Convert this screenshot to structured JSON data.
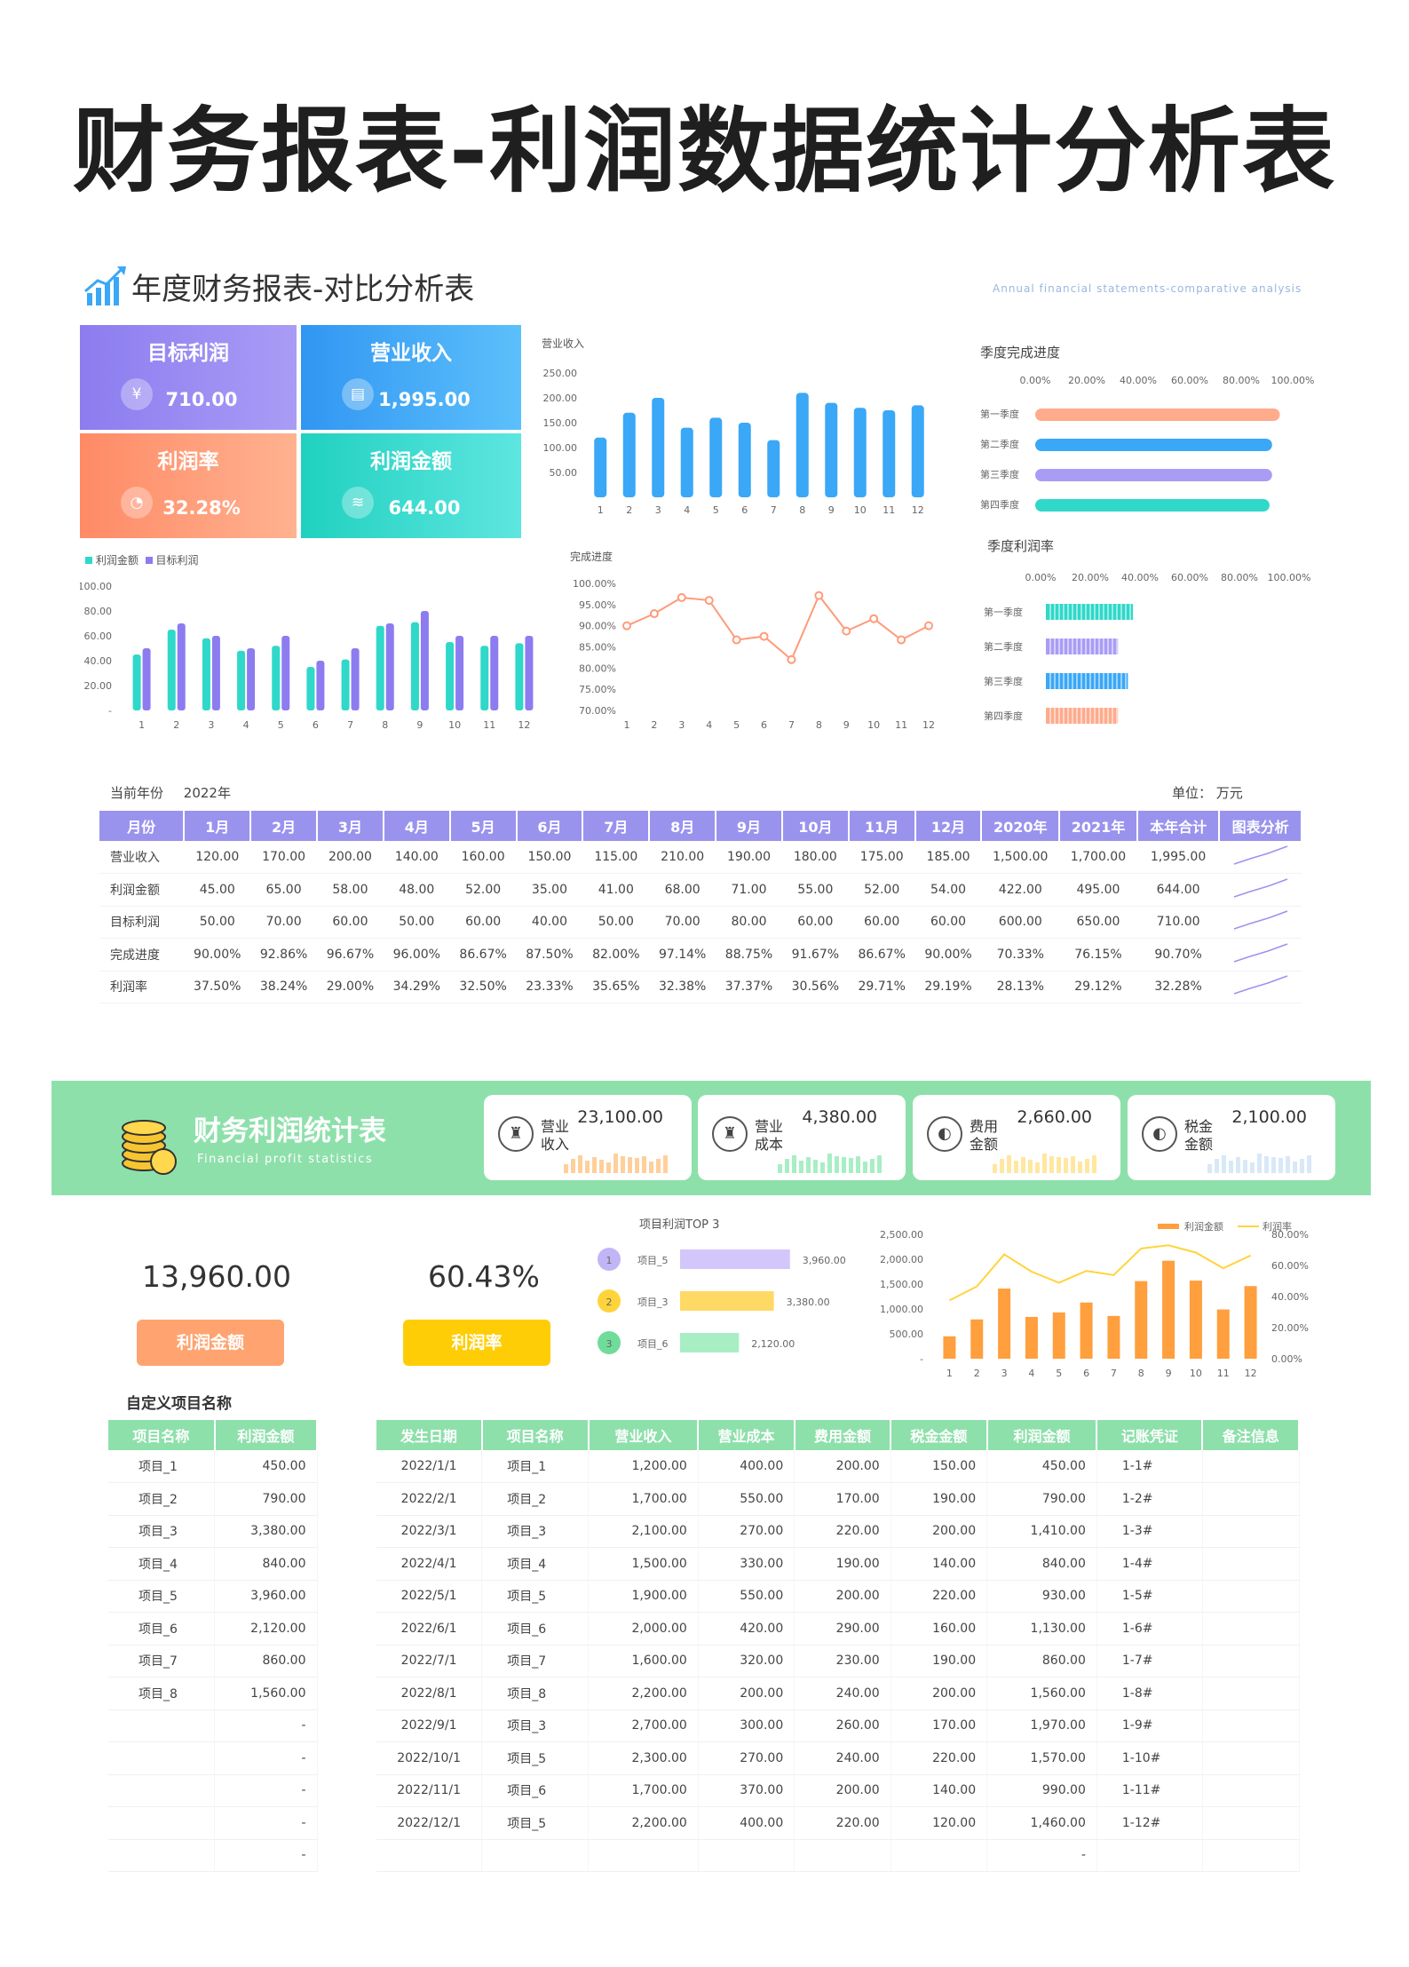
{
  "page_title": "财务报表-利润数据统计分析表",
  "section1": {
    "title": "年度财务报表-对比分析表",
    "subtitle": "Annual financial statements-comparative analysis",
    "kpis": [
      {
        "label": "目标利润",
        "value": "710.00",
        "icon": "wallet-icon",
        "color": "#8c7cf0"
      },
      {
        "label": "营业收入",
        "value": "1,995.00",
        "icon": "document-icon",
        "color": "#3aa7f7"
      },
      {
        "label": "利润率",
        "value": "32.28%",
        "icon": "pie-icon",
        "color": "#ff8f6b"
      },
      {
        "label": "利润金额",
        "value": "644.00",
        "icon": "coins-icon",
        "color": "#2fd8c9"
      }
    ],
    "current_year_label": "当前年份",
    "current_year": "2022年",
    "unit_label": "单位：",
    "unit": "万元"
  },
  "chart_data": [
    {
      "id": "revenue-bar",
      "type": "bar",
      "title": "营业收入",
      "categories": [
        "1",
        "2",
        "3",
        "4",
        "5",
        "6",
        "7",
        "8",
        "9",
        "10",
        "11",
        "12"
      ],
      "values": [
        120,
        170,
        200,
        140,
        160,
        150,
        115,
        210,
        190,
        180,
        175,
        185
      ],
      "ylim": [
        0,
        250
      ],
      "yticks": [
        "250.00",
        "200.00",
        "150.00",
        "100.00",
        "50.00",
        ""
      ],
      "color": "#3aa7f7"
    },
    {
      "id": "profit-target-bar",
      "type": "bar",
      "title": "",
      "legend": [
        "利润金额",
        "目标利润"
      ],
      "categories": [
        "1",
        "2",
        "3",
        "4",
        "5",
        "6",
        "7",
        "8",
        "9",
        "10",
        "11",
        "12"
      ],
      "series": [
        {
          "name": "利润金额",
          "values": [
            45,
            65,
            58,
            48,
            52,
            35,
            41,
            68,
            71,
            55,
            52,
            54
          ],
          "color": "#2fd8c9"
        },
        {
          "name": "目标利润",
          "values": [
            50,
            70,
            60,
            50,
            60,
            40,
            50,
            70,
            80,
            60,
            60,
            60
          ],
          "color": "#8c7cf0"
        }
      ],
      "ylim": [
        0,
        100
      ],
      "yticks": [
        "100.00",
        "80.00",
        "60.00",
        "40.00",
        "20.00",
        "-"
      ]
    },
    {
      "id": "completion-line",
      "type": "line",
      "title": "完成进度",
      "categories": [
        "1",
        "2",
        "3",
        "4",
        "5",
        "6",
        "7",
        "8",
        "9",
        "10",
        "11",
        "12"
      ],
      "values": [
        90.0,
        92.86,
        96.67,
        96.0,
        86.67,
        87.5,
        82.0,
        97.14,
        88.75,
        91.67,
        86.67,
        90.0
      ],
      "ylim": [
        70,
        100
      ],
      "yticks": [
        "100.00%",
        "95.00%",
        "90.00%",
        "85.00%",
        "80.00%",
        "75.00%",
        "70.00%"
      ],
      "color": "#ff9b7a"
    },
    {
      "id": "quarter-progress",
      "type": "bar",
      "orientation": "horizontal",
      "title": "季度完成进度",
      "categories": [
        "第一季度",
        "第二季度",
        "第三季度",
        "第四季度"
      ],
      "values": [
        95,
        92,
        92,
        91
      ],
      "xticks": [
        "0.00%",
        "20.00%",
        "40.00%",
        "60.00%",
        "80.00%",
        "100.00%"
      ],
      "colors": [
        "#ffab8c",
        "#3aa7f7",
        "#a99cf5",
        "#2fd8c9"
      ]
    },
    {
      "id": "quarter-profit-rate",
      "type": "bar",
      "orientation": "horizontal",
      "title": "季度利润率",
      "categories": [
        "第一季度",
        "第二季度",
        "第三季度",
        "第四季度"
      ],
      "values": [
        35,
        29,
        33,
        29
      ],
      "xticks": [
        "0.00%",
        "20.00%",
        "40.00%",
        "60.00%",
        "80.00%",
        "100.00%"
      ],
      "colors": [
        "#2fd8c9",
        "#a99cf5",
        "#3aa7f7",
        "#ffab8c"
      ]
    },
    {
      "id": "top3-profit",
      "type": "bar",
      "orientation": "horizontal",
      "title": "项目利润TOP 3",
      "categories": [
        "项目_5",
        "项目_3",
        "项目_6"
      ],
      "values": [
        3960,
        3380,
        2120
      ],
      "value_labels": [
        "3,960.00",
        "3,380.00",
        "2,120.00"
      ],
      "ranks": [
        "1",
        "2",
        "3"
      ],
      "colors": [
        "#d2c6fb",
        "#ffd966",
        "#a8eec4"
      ],
      "rank_colors": [
        "#c2b5f5",
        "#ffd43b",
        "#6fdc9a"
      ]
    },
    {
      "id": "profit-combo",
      "type": "bar",
      "title": "",
      "legend": [
        "利润金额",
        "利润率"
      ],
      "categories": [
        "1",
        "2",
        "3",
        "4",
        "5",
        "6",
        "7",
        "8",
        "9",
        "10",
        "11",
        "12"
      ],
      "series": [
        {
          "name": "利润金额",
          "values": [
            450,
            790,
            1410,
            840,
            930,
            1130,
            860,
            1560,
            1970,
            1570,
            990,
            1460
          ],
          "color": "#ff9f3d"
        },
        {
          "name": "利润率",
          "type": "line",
          "values": [
            37.5,
            46.5,
            67.1,
            56.0,
            48.9,
            56.5,
            53.8,
            70.9,
            73.0,
            68.3,
            58.2,
            66.4
          ],
          "color": "#ffd43b"
        }
      ],
      "ylim": [
        0,
        2500
      ],
      "yticks_left": [
        "2,500.00",
        "2,000.00",
        "1,500.00",
        "1,000.00",
        "500.00",
        "-"
      ],
      "ylim_right": [
        0,
        80
      ],
      "yticks_right": [
        "80.00%",
        "60.00%",
        "40.00%",
        "20.00%",
        "0.00%"
      ]
    }
  ],
  "table1": {
    "headers": [
      "月份",
      "1月",
      "2月",
      "3月",
      "4月",
      "5月",
      "6月",
      "7月",
      "8月",
      "9月",
      "10月",
      "11月",
      "12月",
      "2020年",
      "2021年",
      "本年合计",
      "图表分析"
    ],
    "rows": [
      {
        "label": "营业收入",
        "cells": [
          "120.00",
          "170.00",
          "200.00",
          "140.00",
          "160.00",
          "150.00",
          "115.00",
          "210.00",
          "190.00",
          "180.00",
          "175.00",
          "185.00",
          "1,500.00",
          "1,700.00",
          "1,995.00"
        ]
      },
      {
        "label": "利润金额",
        "cells": [
          "45.00",
          "65.00",
          "58.00",
          "48.00",
          "52.00",
          "35.00",
          "41.00",
          "68.00",
          "71.00",
          "55.00",
          "52.00",
          "54.00",
          "422.00",
          "495.00",
          "644.00"
        ]
      },
      {
        "label": "目标利润",
        "cells": [
          "50.00",
          "70.00",
          "60.00",
          "50.00",
          "60.00",
          "40.00",
          "50.00",
          "70.00",
          "80.00",
          "60.00",
          "60.00",
          "60.00",
          "600.00",
          "650.00",
          "710.00"
        ]
      },
      {
        "label": "完成进度",
        "cells": [
          "90.00%",
          "92.86%",
          "96.67%",
          "96.00%",
          "86.67%",
          "87.50%",
          "82.00%",
          "97.14%",
          "88.75%",
          "91.67%",
          "86.67%",
          "90.00%",
          "70.33%",
          "76.15%",
          "90.70%"
        ]
      },
      {
        "label": "利润率",
        "cells": [
          "37.50%",
          "38.24%",
          "29.00%",
          "34.29%",
          "32.50%",
          "23.33%",
          "35.65%",
          "32.38%",
          "37.37%",
          "30.56%",
          "29.71%",
          "29.19%",
          "28.13%",
          "29.12%",
          "32.28%"
        ]
      }
    ]
  },
  "section2": {
    "title": "财务利润统计表",
    "subtitle": "Financial profit statistics",
    "cards": [
      {
        "label": "营业收入",
        "value": "23,100.00",
        "icon": "piggy-bank-icon",
        "spark_color": "#ffcf9b"
      },
      {
        "label": "营业成本",
        "value": "4,380.00",
        "icon": "piggy-bank-icon",
        "spark_color": "#a8eec4"
      },
      {
        "label": "费用金额",
        "value": "2,660.00",
        "icon": "wallet-icon",
        "spark_color": "#ffe7a0"
      },
      {
        "label": "税金金额",
        "value": "2,100.00",
        "icon": "wallet-icon",
        "spark_color": "#d8e8f7"
      }
    ],
    "total_profit": "13,960.00",
    "total_profit_label": "利润金额",
    "profit_rate": "60.43%",
    "profit_rate_label": "利润率",
    "custom_title": "自定义项目名称"
  },
  "table2": {
    "headers": [
      "项目名称",
      "利润金额"
    ],
    "rows": [
      [
        "项目_1",
        "450.00"
      ],
      [
        "项目_2",
        "790.00"
      ],
      [
        "项目_3",
        "3,380.00"
      ],
      [
        "项目_4",
        "840.00"
      ],
      [
        "项目_5",
        "3,960.00"
      ],
      [
        "项目_6",
        "2,120.00"
      ],
      [
        "项目_7",
        "860.00"
      ],
      [
        "项目_8",
        "1,560.00"
      ],
      [
        "",
        "-"
      ],
      [
        "",
        "-"
      ],
      [
        "",
        "-"
      ],
      [
        "",
        "-"
      ],
      [
        "",
        "-"
      ]
    ]
  },
  "table3": {
    "headers": [
      "发生日期",
      "项目名称",
      "营业收入",
      "营业成本",
      "费用金额",
      "税金金额",
      "利润金额",
      "记账凭证",
      "备注信息"
    ],
    "rows": [
      [
        "2022/1/1",
        "项目_1",
        "1,200.00",
        "400.00",
        "200.00",
        "150.00",
        "450.00",
        "1-1#",
        ""
      ],
      [
        "2022/2/1",
        "项目_2",
        "1,700.00",
        "550.00",
        "170.00",
        "190.00",
        "790.00",
        "1-2#",
        ""
      ],
      [
        "2022/3/1",
        "项目_3",
        "2,100.00",
        "270.00",
        "220.00",
        "200.00",
        "1,410.00",
        "1-3#",
        ""
      ],
      [
        "2022/4/1",
        "项目_4",
        "1,500.00",
        "330.00",
        "190.00",
        "140.00",
        "840.00",
        "1-4#",
        ""
      ],
      [
        "2022/5/1",
        "项目_5",
        "1,900.00",
        "550.00",
        "200.00",
        "220.00",
        "930.00",
        "1-5#",
        ""
      ],
      [
        "2022/6/1",
        "项目_6",
        "2,000.00",
        "420.00",
        "290.00",
        "160.00",
        "1,130.00",
        "1-6#",
        ""
      ],
      [
        "2022/7/1",
        "项目_7",
        "1,600.00",
        "320.00",
        "230.00",
        "190.00",
        "860.00",
        "1-7#",
        ""
      ],
      [
        "2022/8/1",
        "项目_8",
        "2,200.00",
        "200.00",
        "240.00",
        "200.00",
        "1,560.00",
        "1-8#",
        ""
      ],
      [
        "2022/9/1",
        "项目_3",
        "2,700.00",
        "300.00",
        "260.00",
        "170.00",
        "1,970.00",
        "1-9#",
        ""
      ],
      [
        "2022/10/1",
        "项目_5",
        "2,300.00",
        "270.00",
        "240.00",
        "220.00",
        "1,570.00",
        "1-10#",
        ""
      ],
      [
        "2022/11/1",
        "项目_6",
        "1,700.00",
        "370.00",
        "200.00",
        "140.00",
        "990.00",
        "1-11#",
        ""
      ],
      [
        "2022/12/1",
        "项目_5",
        "2,200.00",
        "400.00",
        "220.00",
        "120.00",
        "1,460.00",
        "1-12#",
        ""
      ],
      [
        "",
        "",
        "",
        "",
        "",
        "",
        "-",
        "",
        ""
      ]
    ]
  }
}
